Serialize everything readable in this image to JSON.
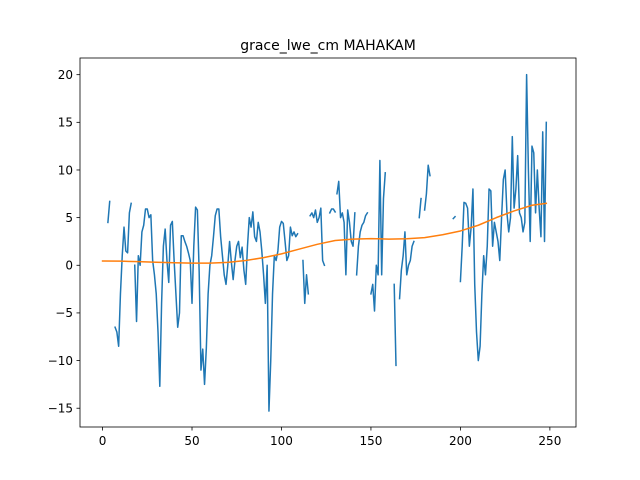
{
  "chart_data": {
    "type": "line",
    "title": "grace_lwe_cm MAHAKAM",
    "xlabel": "",
    "ylabel": "",
    "xlim": [
      -12.6,
      264.6
    ],
    "ylim": [
      -16.97,
      21.75
    ],
    "xticks": [
      0,
      50,
      100,
      150,
      200,
      250
    ],
    "yticks": [
      -15,
      -10,
      -5,
      0,
      5,
      10,
      15,
      20
    ],
    "grid": false,
    "legend": "none",
    "series": [
      {
        "color": "#1f77b4",
        "segments": [
          [
            [
              3,
              4.5
            ],
            [
              4,
              6.7
            ]
          ],
          [
            [
              7,
              -6.5
            ],
            [
              8,
              -7.0
            ],
            [
              9,
              -8.5
            ],
            [
              10,
              -3.0
            ],
            [
              11,
              1.0
            ],
            [
              12,
              4.0
            ],
            [
              13,
              1.5
            ],
            [
              14,
              1.3
            ],
            [
              15,
              5.5
            ],
            [
              16,
              6.5
            ]
          ],
          [
            [
              18,
              0.0
            ],
            [
              19,
              -5.9
            ],
            [
              20,
              1.0
            ],
            [
              21,
              0.0
            ],
            [
              22,
              3.5
            ],
            [
              23,
              4.2
            ],
            [
              24,
              5.9
            ],
            [
              25,
              5.9
            ],
            [
              26,
              5.0
            ],
            [
              27,
              5.3
            ],
            [
              28,
              0.5
            ],
            [
              29,
              -1.0
            ],
            [
              30,
              -3.0
            ],
            [
              31,
              -7.0
            ],
            [
              32,
              -12.7
            ],
            [
              33,
              -4.0
            ],
            [
              34,
              2.0
            ],
            [
              35,
              3.8
            ],
            [
              36,
              0.5
            ],
            [
              37,
              -1.8
            ],
            [
              38,
              4.2
            ],
            [
              39,
              4.6
            ],
            [
              40,
              0.5
            ],
            [
              41,
              -3.0
            ],
            [
              42,
              -6.5
            ],
            [
              43,
              -5.0
            ],
            [
              44,
              3.1
            ],
            [
              45,
              3.1
            ],
            [
              46,
              2.5
            ],
            [
              47,
              2.0
            ],
            [
              48,
              1.3
            ],
            [
              49,
              0.5
            ],
            [
              50,
              -4.0
            ],
            [
              51,
              2.0
            ],
            [
              52,
              6.1
            ],
            [
              53,
              5.8
            ],
            [
              54,
              -0.7
            ],
            [
              55,
              -11.0
            ],
            [
              56,
              -8.8
            ],
            [
              57,
              -12.5
            ],
            [
              58,
              -8.7
            ],
            [
              59,
              -3.0
            ],
            [
              60,
              0.0
            ],
            [
              61,
              1.0
            ],
            [
              62,
              3.0
            ],
            [
              63,
              5.2
            ],
            [
              64,
              5.9
            ],
            [
              65,
              5.9
            ],
            [
              66,
              3.0
            ],
            [
              67,
              1.0
            ],
            [
              68,
              -1.0
            ],
            [
              69,
              -2.0
            ],
            [
              70,
              0.0
            ],
            [
              71,
              2.5
            ],
            [
              72,
              0.3
            ],
            [
              73,
              -1.5
            ],
            [
              74,
              0.5
            ],
            [
              75,
              2.0
            ],
            [
              76,
              2.5
            ],
            [
              77,
              0.8
            ],
            [
              78,
              1.9
            ],
            [
              79,
              -0.5
            ],
            [
              80,
              -2.0
            ],
            [
              81,
              2.0
            ],
            [
              82,
              5.0
            ],
            [
              83,
              4.0
            ],
            [
              84,
              5.6
            ],
            [
              85,
              3.0
            ],
            [
              86,
              2.5
            ],
            [
              87,
              4.5
            ],
            [
              88,
              3.5
            ],
            [
              89,
              1.5
            ],
            [
              90,
              -1.0
            ],
            [
              91,
              -4.0
            ],
            [
              92,
              0.0
            ],
            [
              93,
              -15.3
            ],
            [
              94,
              -10.0
            ],
            [
              95,
              -3.0
            ],
            [
              96,
              1.0
            ],
            [
              97,
              0.5
            ],
            [
              98,
              1.5
            ],
            [
              99,
              4.0
            ],
            [
              100,
              4.6
            ],
            [
              101,
              4.4
            ],
            [
              102,
              2.5
            ],
            [
              103,
              0.5
            ],
            [
              104,
              1.0
            ],
            [
              105,
              4.0
            ],
            [
              106,
              3.1
            ],
            [
              107,
              3.5
            ],
            [
              108,
              3.0
            ],
            [
              109,
              3.3
            ]
          ],
          [
            [
              112,
              0.5
            ],
            [
              113,
              -4.0
            ],
            [
              114,
              -1.0
            ],
            [
              115,
              -3.0
            ]
          ],
          [
            [
              116,
              5.2
            ],
            [
              117,
              5.5
            ],
            [
              118,
              5.0
            ],
            [
              119,
              5.8
            ],
            [
              120,
              4.5
            ],
            [
              121,
              5.0
            ],
            [
              122,
              6.0
            ],
            [
              123,
              0.5
            ],
            [
              124,
              0.0
            ]
          ],
          [
            [
              127,
              5.5
            ],
            [
              128,
              5.9
            ],
            [
              129,
              5.9
            ],
            [
              130,
              5.6
            ]
          ],
          [
            [
              131,
              7.5
            ],
            [
              132,
              8.8
            ],
            [
              133,
              5.0
            ],
            [
              134,
              5.5
            ],
            [
              135,
              4.5
            ],
            [
              136,
              -1.0
            ],
            [
              137,
              5.8
            ],
            [
              138,
              4.5
            ],
            [
              139,
              2.5
            ],
            [
              140,
              2.0
            ],
            [
              141,
              5.5
            ]
          ],
          [
            [
              142,
              -1.0
            ],
            [
              143,
              2.0
            ],
            [
              144,
              3.5
            ],
            [
              145,
              4.2
            ],
            [
              146,
              4.5
            ],
            [
              147,
              5.2
            ],
            [
              148,
              5.5
            ]
          ],
          [
            [
              150,
              -3.0
            ],
            [
              151,
              -2.0
            ],
            [
              152,
              -4.8
            ],
            [
              153,
              0.0
            ],
            [
              154,
              -1.0
            ],
            [
              155,
              11.0
            ],
            [
              156,
              -1.0
            ],
            [
              157,
              7.0
            ],
            [
              158,
              9.7
            ]
          ],
          [
            [
              163,
              -2.0
            ],
            [
              164,
              -10.5
            ]
          ],
          [
            [
              166,
              -3.5
            ],
            [
              167,
              -0.5
            ],
            [
              168,
              1.0
            ],
            [
              169,
              3.5
            ],
            [
              170,
              -1.0
            ],
            [
              171,
              0.0
            ],
            [
              172,
              0.5
            ],
            [
              173,
              2.0
            ],
            [
              174,
              2.5
            ]
          ],
          [
            [
              177,
              5.0
            ],
            [
              178,
              7.0
            ]
          ],
          [
            [
              180,
              5.8
            ],
            [
              181,
              7.5
            ],
            [
              182,
              10.5
            ],
            [
              183,
              9.4
            ]
          ],
          [
            [
              196,
              4.9
            ],
            [
              197,
              5.1
            ]
          ],
          [
            [
              200,
              -1.7
            ],
            [
              201,
              2.0
            ],
            [
              202,
              6.6
            ],
            [
              203,
              6.5
            ],
            [
              204,
              6.0
            ],
            [
              205,
              2.0
            ],
            [
              206,
              4.0
            ],
            [
              207,
              8.0
            ],
            [
              208,
              -2.0
            ],
            [
              209,
              -7.0
            ],
            [
              210,
              -10.0
            ],
            [
              211,
              -8.5
            ],
            [
              212,
              -3.0
            ],
            [
              213,
              1.0
            ],
            [
              214,
              -1.0
            ],
            [
              215,
              2.0
            ],
            [
              216,
              8.0
            ],
            [
              217,
              7.8
            ],
            [
              218,
              2.0
            ],
            [
              219,
              4.5
            ],
            [
              220,
              3.5
            ],
            [
              221,
              2.5
            ],
            [
              222,
              0.5
            ],
            [
              223,
              5.0
            ],
            [
              224,
              9.0
            ],
            [
              225,
              10.0
            ],
            [
              226,
              5.5
            ],
            [
              227,
              3.5
            ],
            [
              228,
              5.0
            ],
            [
              229,
              13.5
            ],
            [
              230,
              6.0
            ],
            [
              231,
              8.0
            ],
            [
              232,
              11.5
            ],
            [
              233,
              5.5
            ],
            [
              234,
              5.0
            ],
            [
              235,
              3.5
            ],
            [
              236,
              4.5
            ],
            [
              237,
              20.0
            ],
            [
              238,
              10.0
            ],
            [
              239,
              2.5
            ],
            [
              240,
              12.5
            ],
            [
              241,
              11.8
            ],
            [
              242,
              5.5
            ],
            [
              243,
              10.0
            ],
            [
              244,
              6.0
            ],
            [
              245,
              3.0
            ],
            [
              246,
              14.0
            ],
            [
              247,
              2.5
            ],
            [
              248,
              15.0
            ]
          ]
        ]
      },
      {
        "color": "#ff7f0e",
        "segments": [
          [
            [
              0,
              0.45
            ],
            [
              10,
              0.43
            ],
            [
              20,
              0.38
            ],
            [
              30,
              0.32
            ],
            [
              40,
              0.26
            ],
            [
              50,
              0.22
            ],
            [
              60,
              0.22
            ],
            [
              70,
              0.3
            ],
            [
              80,
              0.5
            ],
            [
              90,
              0.8
            ],
            [
              100,
              1.2
            ],
            [
              110,
              1.7
            ],
            [
              120,
              2.2
            ],
            [
              130,
              2.6
            ],
            [
              140,
              2.75
            ],
            [
              150,
              2.8
            ],
            [
              160,
              2.75
            ],
            [
              170,
              2.78
            ],
            [
              180,
              2.9
            ],
            [
              190,
              3.2
            ],
            [
              200,
              3.6
            ],
            [
              210,
              4.2
            ],
            [
              220,
              5.0
            ],
            [
              230,
              5.7
            ],
            [
              240,
              6.3
            ],
            [
              248,
              6.5
            ]
          ]
        ]
      }
    ]
  }
}
